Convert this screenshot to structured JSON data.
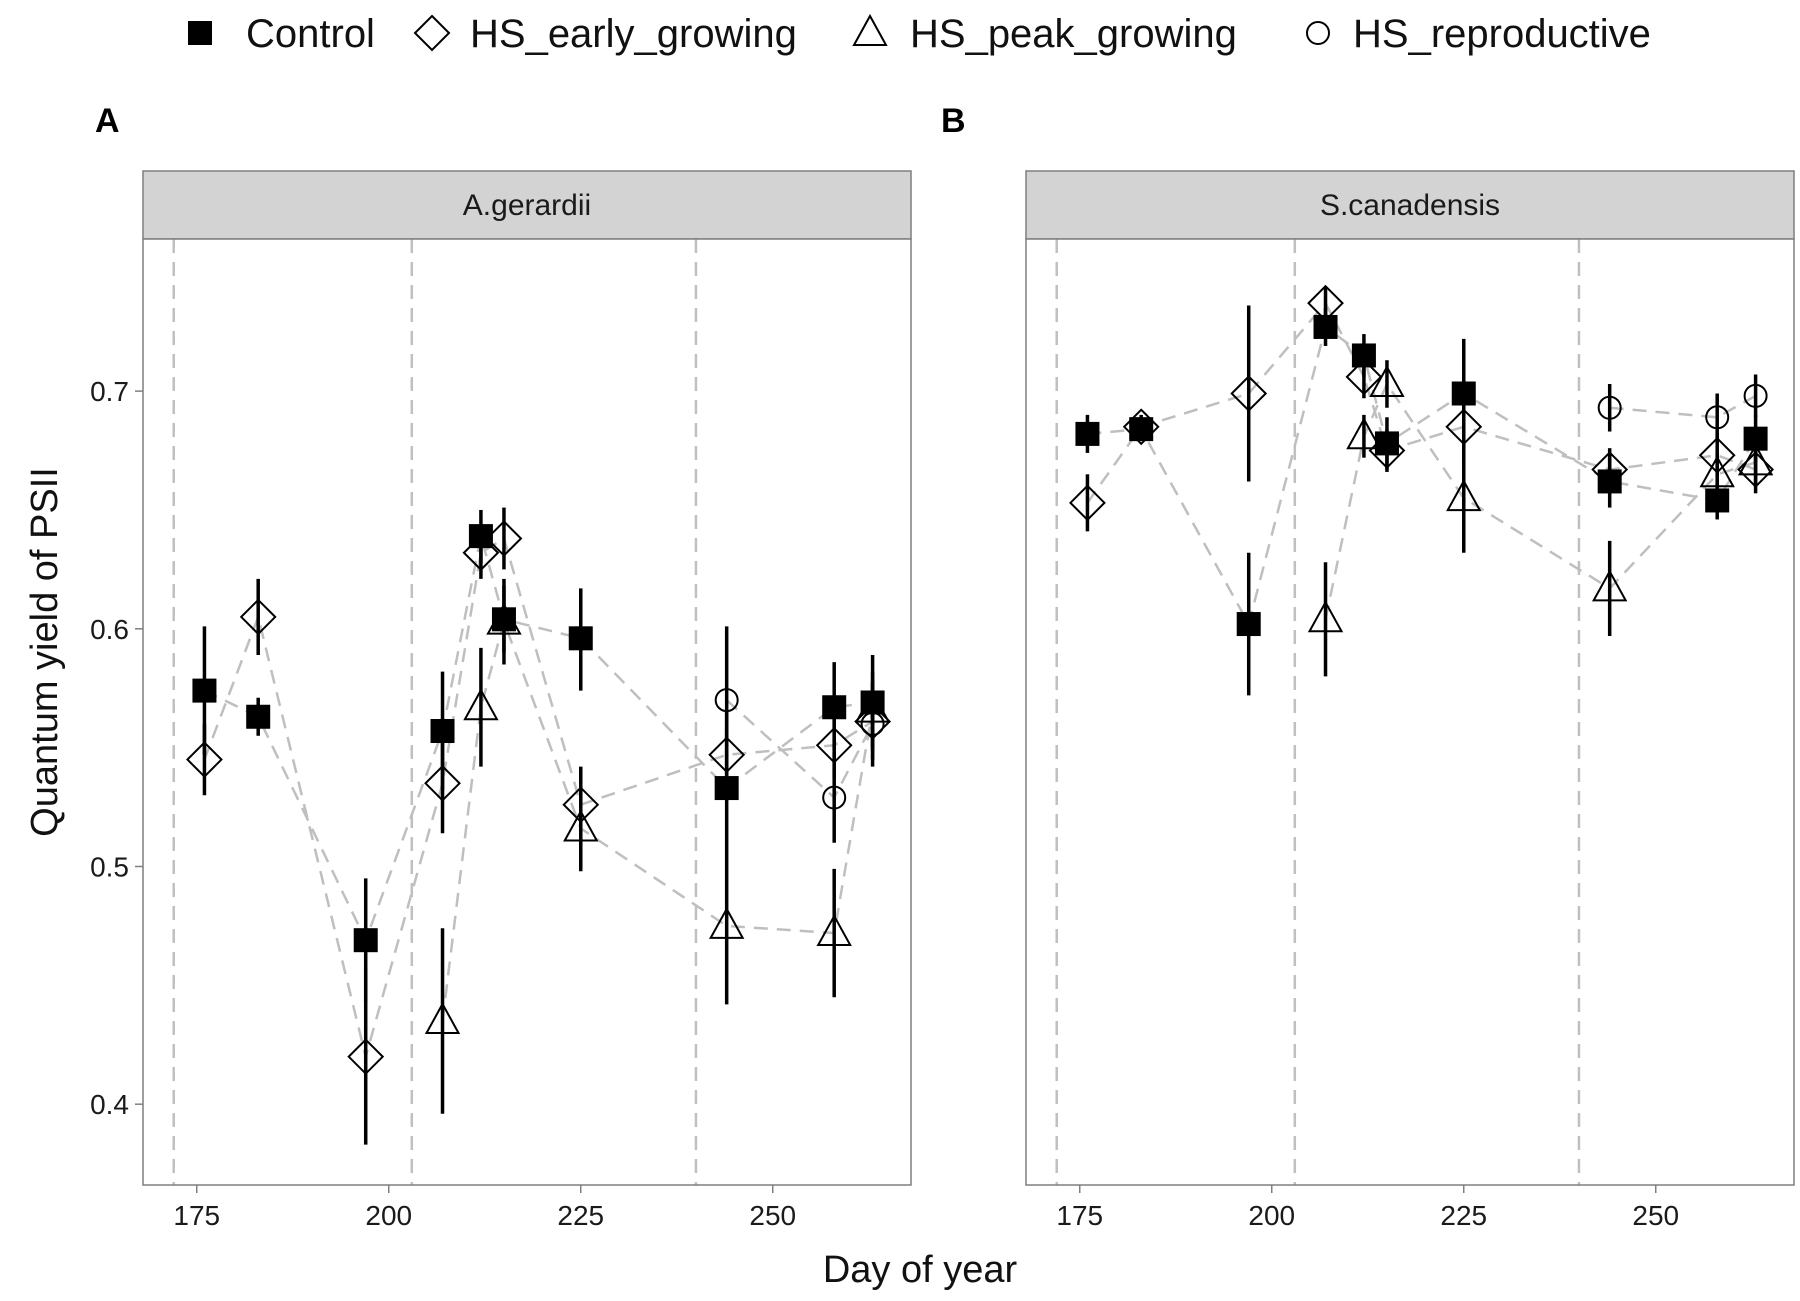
{
  "colors": {
    "grid": "#c0c0c0",
    "strip": "#d3d3d3",
    "frame": "#7f7f7f",
    "marker": "#000000",
    "connector": "#bfbfbf"
  },
  "legend": {
    "entries": [
      {
        "label": "Control",
        "shape": "square-filled"
      },
      {
        "label": "HS_early_growing",
        "shape": "diamond-open"
      },
      {
        "label": "HS_peak_growing",
        "shape": "triangle-open"
      },
      {
        "label": "HS_reproductive",
        "shape": "circle-open"
      }
    ]
  },
  "chart_data": {
    "type": "scatter",
    "xlabel": "Day of year",
    "ylabel": "Quantum yield of PSII",
    "xlim": [
      168,
      268
    ],
    "ylim": [
      0.366,
      0.764
    ],
    "xticks": [
      "175",
      "200",
      "225",
      "250"
    ],
    "yticks": [
      "0.4",
      "0.5",
      "0.6",
      "0.7"
    ],
    "xtick_values": [
      175,
      200,
      225,
      250
    ],
    "ytick_values": [
      0.4,
      0.5,
      0.6,
      0.7
    ],
    "grid": true,
    "legend_position": "top",
    "reference_lines_x": [
      172,
      203,
      240
    ],
    "panels": [
      {
        "panel_label": "A",
        "strip_title": "A.gerardii",
        "series": [
          {
            "name": "Control",
            "points": [
              {
                "x": 176,
                "y": 0.574,
                "lo": 0.547,
                "hi": 0.601
              },
              {
                "x": 183,
                "y": 0.563,
                "lo": 0.555,
                "hi": 0.571
              },
              {
                "x": 197,
                "y": 0.469,
                "lo": 0.443,
                "hi": 0.495
              },
              {
                "x": 207,
                "y": 0.557,
                "lo": 0.532,
                "hi": 0.582
              },
              {
                "x": 212,
                "y": 0.639,
                "lo": 0.628,
                "hi": 0.65
              },
              {
                "x": 215,
                "y": 0.604,
                "lo": 0.59,
                "hi": 0.618
              },
              {
                "x": 225,
                "y": 0.596,
                "lo": 0.574,
                "hi": 0.617
              },
              {
                "x": 244,
                "y": 0.533,
                "lo": 0.508,
                "hi": 0.558
              },
              {
                "x": 258,
                "y": 0.567,
                "lo": 0.549,
                "hi": 0.586
              },
              {
                "x": 263,
                "y": 0.569,
                "lo": 0.549,
                "hi": 0.589
              }
            ]
          },
          {
            "name": "HS_early_growing",
            "points": [
              {
                "x": 176,
                "y": 0.545,
                "lo": 0.53,
                "hi": 0.56
              },
              {
                "x": 183,
                "y": 0.605,
                "lo": 0.589,
                "hi": 0.621
              },
              {
                "x": 197,
                "y": 0.42,
                "lo": 0.383,
                "hi": 0.457
              },
              {
                "x": 207,
                "y": 0.535,
                "lo": 0.514,
                "hi": 0.556
              },
              {
                "x": 212,
                "y": 0.632,
                "lo": 0.621,
                "hi": 0.643
              },
              {
                "x": 215,
                "y": 0.638,
                "lo": 0.625,
                "hi": 0.651
              },
              {
                "x": 225,
                "y": 0.526,
                "lo": 0.51,
                "hi": 0.542
              },
              {
                "x": 244,
                "y": 0.547,
                "lo": 0.529,
                "hi": 0.565
              },
              {
                "x": 258,
                "y": 0.551,
                "lo": 0.537,
                "hi": 0.565
              },
              {
                "x": 263,
                "y": 0.561,
                "lo": 0.545,
                "hi": 0.577
              }
            ]
          },
          {
            "name": "HS_peak_growing",
            "points": [
              {
                "x": 207,
                "y": 0.435,
                "lo": 0.396,
                "hi": 0.474
              },
              {
                "x": 212,
                "y": 0.567,
                "lo": 0.542,
                "hi": 0.592
              },
              {
                "x": 215,
                "y": 0.603,
                "lo": 0.585,
                "hi": 0.621
              },
              {
                "x": 225,
                "y": 0.516,
                "lo": 0.498,
                "hi": 0.534
              },
              {
                "x": 244,
                "y": 0.475,
                "lo": 0.442,
                "hi": 0.508
              },
              {
                "x": 258,
                "y": 0.472,
                "lo": 0.445,
                "hi": 0.499
              },
              {
                "x": 263,
                "y": 0.566,
                "lo": 0.55,
                "hi": 0.582
              }
            ]
          },
          {
            "name": "HS_reproductive",
            "points": [
              {
                "x": 244,
                "y": 0.57,
                "lo": 0.539,
                "hi": 0.601
              },
              {
                "x": 258,
                "y": 0.529,
                "lo": 0.51,
                "hi": 0.548
              },
              {
                "x": 263,
                "y": 0.56,
                "lo": 0.542,
                "hi": 0.578
              }
            ]
          }
        ]
      },
      {
        "panel_label": "B",
        "strip_title": "S.canadensis",
        "series": [
          {
            "name": "Control",
            "points": [
              {
                "x": 176,
                "y": 0.682,
                "lo": 0.674,
                "hi": 0.69
              },
              {
                "x": 183,
                "y": 0.684,
                "lo": 0.679,
                "hi": 0.689
              },
              {
                "x": 197,
                "y": 0.602,
                "lo": 0.572,
                "hi": 0.632
              },
              {
                "x": 207,
                "y": 0.727,
                "lo": 0.719,
                "hi": 0.735
              },
              {
                "x": 212,
                "y": 0.715,
                "lo": 0.706,
                "hi": 0.724
              },
              {
                "x": 215,
                "y": 0.678,
                "lo": 0.667,
                "hi": 0.689
              },
              {
                "x": 225,
                "y": 0.699,
                "lo": 0.676,
                "hi": 0.722
              },
              {
                "x": 244,
                "y": 0.662,
                "lo": 0.651,
                "hi": 0.673
              },
              {
                "x": 258,
                "y": 0.654,
                "lo": 0.646,
                "hi": 0.662
              },
              {
                "x": 263,
                "y": 0.68,
                "lo": 0.67,
                "hi": 0.69
              }
            ]
          },
          {
            "name": "HS_early_growing",
            "points": [
              {
                "x": 176,
                "y": 0.653,
                "lo": 0.641,
                "hi": 0.665
              },
              {
                "x": 183,
                "y": 0.685,
                "lo": 0.68,
                "hi": 0.69
              },
              {
                "x": 197,
                "y": 0.699,
                "lo": 0.662,
                "hi": 0.736
              },
              {
                "x": 207,
                "y": 0.737,
                "lo": 0.73,
                "hi": 0.744
              },
              {
                "x": 212,
                "y": 0.706,
                "lo": 0.697,
                "hi": 0.715
              },
              {
                "x": 215,
                "y": 0.675,
                "lo": 0.666,
                "hi": 0.684
              },
              {
                "x": 225,
                "y": 0.685,
                "lo": 0.67,
                "hi": 0.7
              },
              {
                "x": 244,
                "y": 0.667,
                "lo": 0.658,
                "hi": 0.676
              },
              {
                "x": 258,
                "y": 0.673,
                "lo": 0.664,
                "hi": 0.682
              },
              {
                "x": 263,
                "y": 0.667,
                "lo": 0.657,
                "hi": 0.677
              }
            ]
          },
          {
            "name": "HS_peak_growing",
            "points": [
              {
                "x": 207,
                "y": 0.604,
                "lo": 0.58,
                "hi": 0.628
              },
              {
                "x": 212,
                "y": 0.681,
                "lo": 0.672,
                "hi": 0.69
              },
              {
                "x": 215,
                "y": 0.703,
                "lo": 0.693,
                "hi": 0.713
              },
              {
                "x": 225,
                "y": 0.655,
                "lo": 0.632,
                "hi": 0.678
              },
              {
                "x": 244,
                "y": 0.617,
                "lo": 0.597,
                "hi": 0.637
              },
              {
                "x": 258,
                "y": 0.665,
                "lo": 0.656,
                "hi": 0.674
              },
              {
                "x": 263,
                "y": 0.67,
                "lo": 0.66,
                "hi": 0.68
              }
            ]
          },
          {
            "name": "HS_reproductive",
            "points": [
              {
                "x": 244,
                "y": 0.693,
                "lo": 0.683,
                "hi": 0.703
              },
              {
                "x": 258,
                "y": 0.689,
                "lo": 0.679,
                "hi": 0.699
              },
              {
                "x": 263,
                "y": 0.698,
                "lo": 0.689,
                "hi": 0.707
              }
            ]
          }
        ]
      }
    ]
  }
}
